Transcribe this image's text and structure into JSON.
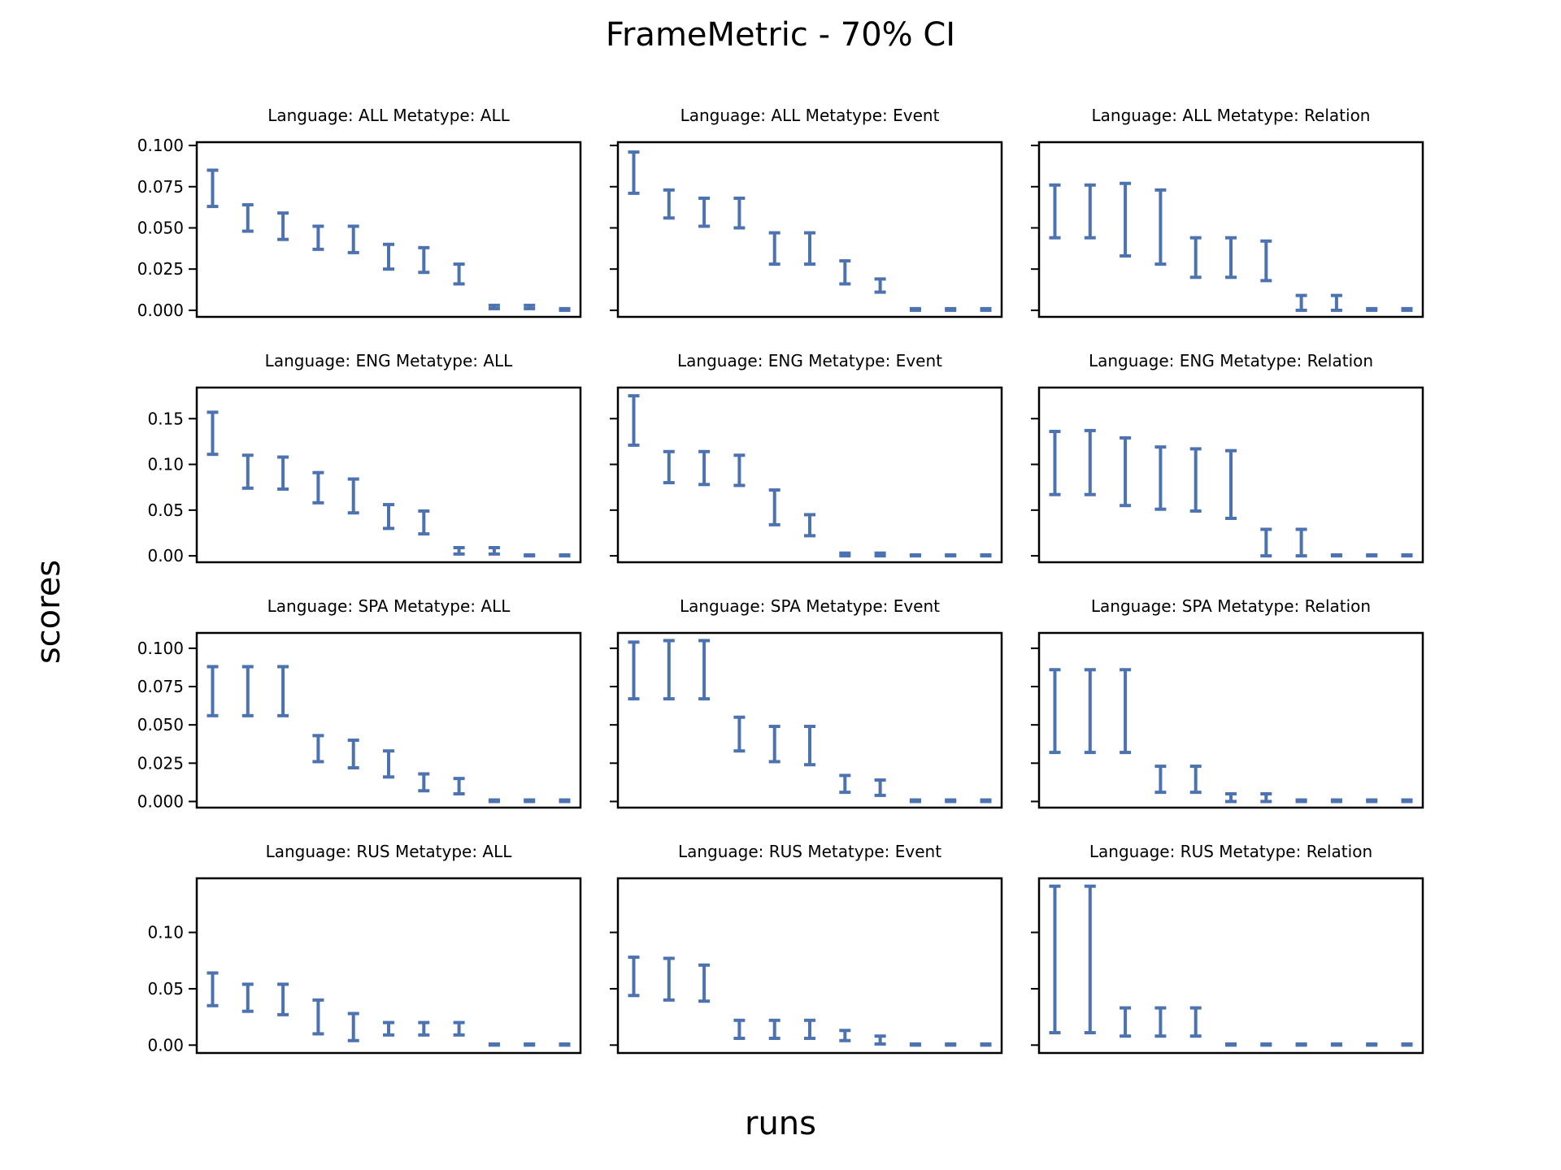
{
  "figure": {
    "title": "FrameMetric - 70% CI",
    "xlabel": "runs",
    "ylabel": "scores",
    "color": "#4c72b0"
  },
  "chart_data": [
    {
      "type": "errorbar",
      "title": "Language: ALL Metatype: ALL",
      "ylim": [
        -0.004,
        0.102
      ],
      "yticks": [
        0.0,
        0.025,
        0.05,
        0.075,
        0.1
      ],
      "ytick_labels": [
        "0.000",
        "0.025",
        "0.050",
        "0.075",
        "0.100"
      ],
      "low": [
        0.063,
        0.048,
        0.043,
        0.037,
        0.035,
        0.025,
        0.023,
        0.016,
        0.001,
        0.001,
        0.0
      ],
      "high": [
        0.085,
        0.064,
        0.059,
        0.051,
        0.051,
        0.04,
        0.038,
        0.028,
        0.003,
        0.003,
        0.001
      ]
    },
    {
      "type": "errorbar",
      "title": "Language: ALL Metatype: Event",
      "ylim": [
        -0.004,
        0.102
      ],
      "yticks": [
        0.0,
        0.025,
        0.05,
        0.075,
        0.1
      ],
      "ytick_labels": [
        "",
        "",
        "",
        "",
        ""
      ],
      "low": [
        0.071,
        0.056,
        0.051,
        0.05,
        0.028,
        0.028,
        0.016,
        0.011,
        0.0,
        0.0,
        0.0
      ],
      "high": [
        0.096,
        0.073,
        0.068,
        0.068,
        0.047,
        0.047,
        0.03,
        0.019,
        0.001,
        0.001,
        0.001
      ]
    },
    {
      "type": "errorbar",
      "title": "Language: ALL Metatype: Relation",
      "ylim": [
        -0.004,
        0.102
      ],
      "yticks": [
        0.0,
        0.025,
        0.05,
        0.075,
        0.1
      ],
      "ytick_labels": [
        "",
        "",
        "",
        "",
        ""
      ],
      "low": [
        0.044,
        0.044,
        0.033,
        0.028,
        0.02,
        0.02,
        0.018,
        0.0,
        0.0,
        0.0,
        0.0
      ],
      "high": [
        0.076,
        0.076,
        0.077,
        0.073,
        0.044,
        0.044,
        0.042,
        0.009,
        0.009,
        0.001,
        0.001
      ]
    },
    {
      "type": "errorbar",
      "title": "Language: ENG Metatype: ALL",
      "ylim": [
        -0.007,
        0.184
      ],
      "yticks": [
        0.0,
        0.05,
        0.1,
        0.15
      ],
      "ytick_labels": [
        "0.00",
        "0.05",
        "0.10",
        "0.15"
      ],
      "low": [
        0.111,
        0.074,
        0.073,
        0.058,
        0.047,
        0.03,
        0.024,
        0.002,
        0.002,
        0.0,
        0.0
      ],
      "high": [
        0.157,
        0.11,
        0.108,
        0.091,
        0.084,
        0.056,
        0.049,
        0.009,
        0.009,
        0.001,
        0.001
      ]
    },
    {
      "type": "errorbar",
      "title": "Language: ENG Metatype: Event",
      "ylim": [
        -0.007,
        0.184
      ],
      "yticks": [
        0.0,
        0.05,
        0.1,
        0.15
      ],
      "ytick_labels": [
        "",
        "",
        "",
        ""
      ],
      "low": [
        0.121,
        0.08,
        0.078,
        0.077,
        0.034,
        0.022,
        0.0,
        0.0,
        0.0,
        0.0,
        0.0
      ],
      "high": [
        0.175,
        0.114,
        0.114,
        0.11,
        0.072,
        0.045,
        0.003,
        0.003,
        0.001,
        0.001,
        0.001
      ]
    },
    {
      "type": "errorbar",
      "title": "Language: ENG Metatype: Relation",
      "ylim": [
        -0.007,
        0.184
      ],
      "yticks": [
        0.0,
        0.05,
        0.1,
        0.15
      ],
      "ytick_labels": [
        "",
        "",
        "",
        ""
      ],
      "low": [
        0.067,
        0.067,
        0.055,
        0.051,
        0.049,
        0.041,
        0.0,
        0.0,
        0.0,
        0.0,
        0.0
      ],
      "high": [
        0.136,
        0.137,
        0.129,
        0.119,
        0.117,
        0.115,
        0.029,
        0.029,
        0.001,
        0.001,
        0.001
      ]
    },
    {
      "type": "errorbar",
      "title": "Language: SPA Metatype: ALL",
      "ylim": [
        -0.004,
        0.11
      ],
      "yticks": [
        0.0,
        0.025,
        0.05,
        0.075,
        0.1
      ],
      "ytick_labels": [
        "0.000",
        "0.025",
        "0.050",
        "0.075",
        "0.100"
      ],
      "low": [
        0.056,
        0.056,
        0.056,
        0.026,
        0.022,
        0.016,
        0.007,
        0.005,
        0.0,
        0.0,
        0.0
      ],
      "high": [
        0.088,
        0.088,
        0.088,
        0.043,
        0.04,
        0.033,
        0.018,
        0.015,
        0.001,
        0.001,
        0.001
      ]
    },
    {
      "type": "errorbar",
      "title": "Language: SPA Metatype: Event",
      "ylim": [
        -0.004,
        0.11
      ],
      "yticks": [
        0.0,
        0.025,
        0.05,
        0.075,
        0.1
      ],
      "ytick_labels": [
        "",
        "",
        "",
        "",
        ""
      ],
      "low": [
        0.067,
        0.067,
        0.067,
        0.033,
        0.026,
        0.024,
        0.006,
        0.004,
        0.0,
        0.0,
        0.0
      ],
      "high": [
        0.104,
        0.105,
        0.105,
        0.055,
        0.049,
        0.049,
        0.017,
        0.014,
        0.001,
        0.001,
        0.001
      ]
    },
    {
      "type": "errorbar",
      "title": "Language: SPA Metatype: Relation",
      "ylim": [
        -0.004,
        0.11
      ],
      "yticks": [
        0.0,
        0.025,
        0.05,
        0.075,
        0.1
      ],
      "ytick_labels": [
        "",
        "",
        "",
        "",
        ""
      ],
      "low": [
        0.032,
        0.032,
        0.032,
        0.006,
        0.006,
        0.0,
        0.0,
        0.0,
        0.0,
        0.0,
        0.0
      ],
      "high": [
        0.086,
        0.086,
        0.086,
        0.023,
        0.023,
        0.005,
        0.005,
        0.001,
        0.001,
        0.001,
        0.001
      ]
    },
    {
      "type": "errorbar",
      "title": "Language: RUS Metatype: ALL",
      "ylim": [
        -0.007,
        0.148
      ],
      "yticks": [
        0.0,
        0.05,
        0.1
      ],
      "ytick_labels": [
        "0.00",
        "0.05",
        "0.10"
      ],
      "low": [
        0.035,
        0.03,
        0.027,
        0.01,
        0.004,
        0.009,
        0.009,
        0.009,
        0.0,
        0.0,
        0.0
      ],
      "high": [
        0.064,
        0.054,
        0.054,
        0.04,
        0.028,
        0.02,
        0.02,
        0.02,
        0.001,
        0.001,
        0.001
      ]
    },
    {
      "type": "errorbar",
      "title": "Language: RUS Metatype: Event",
      "ylim": [
        -0.007,
        0.148
      ],
      "yticks": [
        0.0,
        0.05,
        0.1
      ],
      "ytick_labels": [
        "",
        "",
        ""
      ],
      "low": [
        0.044,
        0.04,
        0.039,
        0.006,
        0.006,
        0.006,
        0.004,
        0.001,
        0.0,
        0.0,
        0.0
      ],
      "high": [
        0.078,
        0.077,
        0.071,
        0.022,
        0.022,
        0.022,
        0.013,
        0.008,
        0.001,
        0.001,
        0.001
      ]
    },
    {
      "type": "errorbar",
      "title": "Language: RUS Metatype: Relation",
      "ylim": [
        -0.007,
        0.148
      ],
      "yticks": [
        0.0,
        0.05,
        0.1
      ],
      "ytick_labels": [
        "",
        "",
        ""
      ],
      "low": [
        0.011,
        0.011,
        0.008,
        0.008,
        0.008,
        0.0,
        0.0,
        0.0,
        0.0,
        0.0,
        0.0
      ],
      "high": [
        0.141,
        0.141,
        0.033,
        0.033,
        0.033,
        0.001,
        0.001,
        0.001,
        0.001,
        0.001,
        0.001
      ]
    }
  ]
}
